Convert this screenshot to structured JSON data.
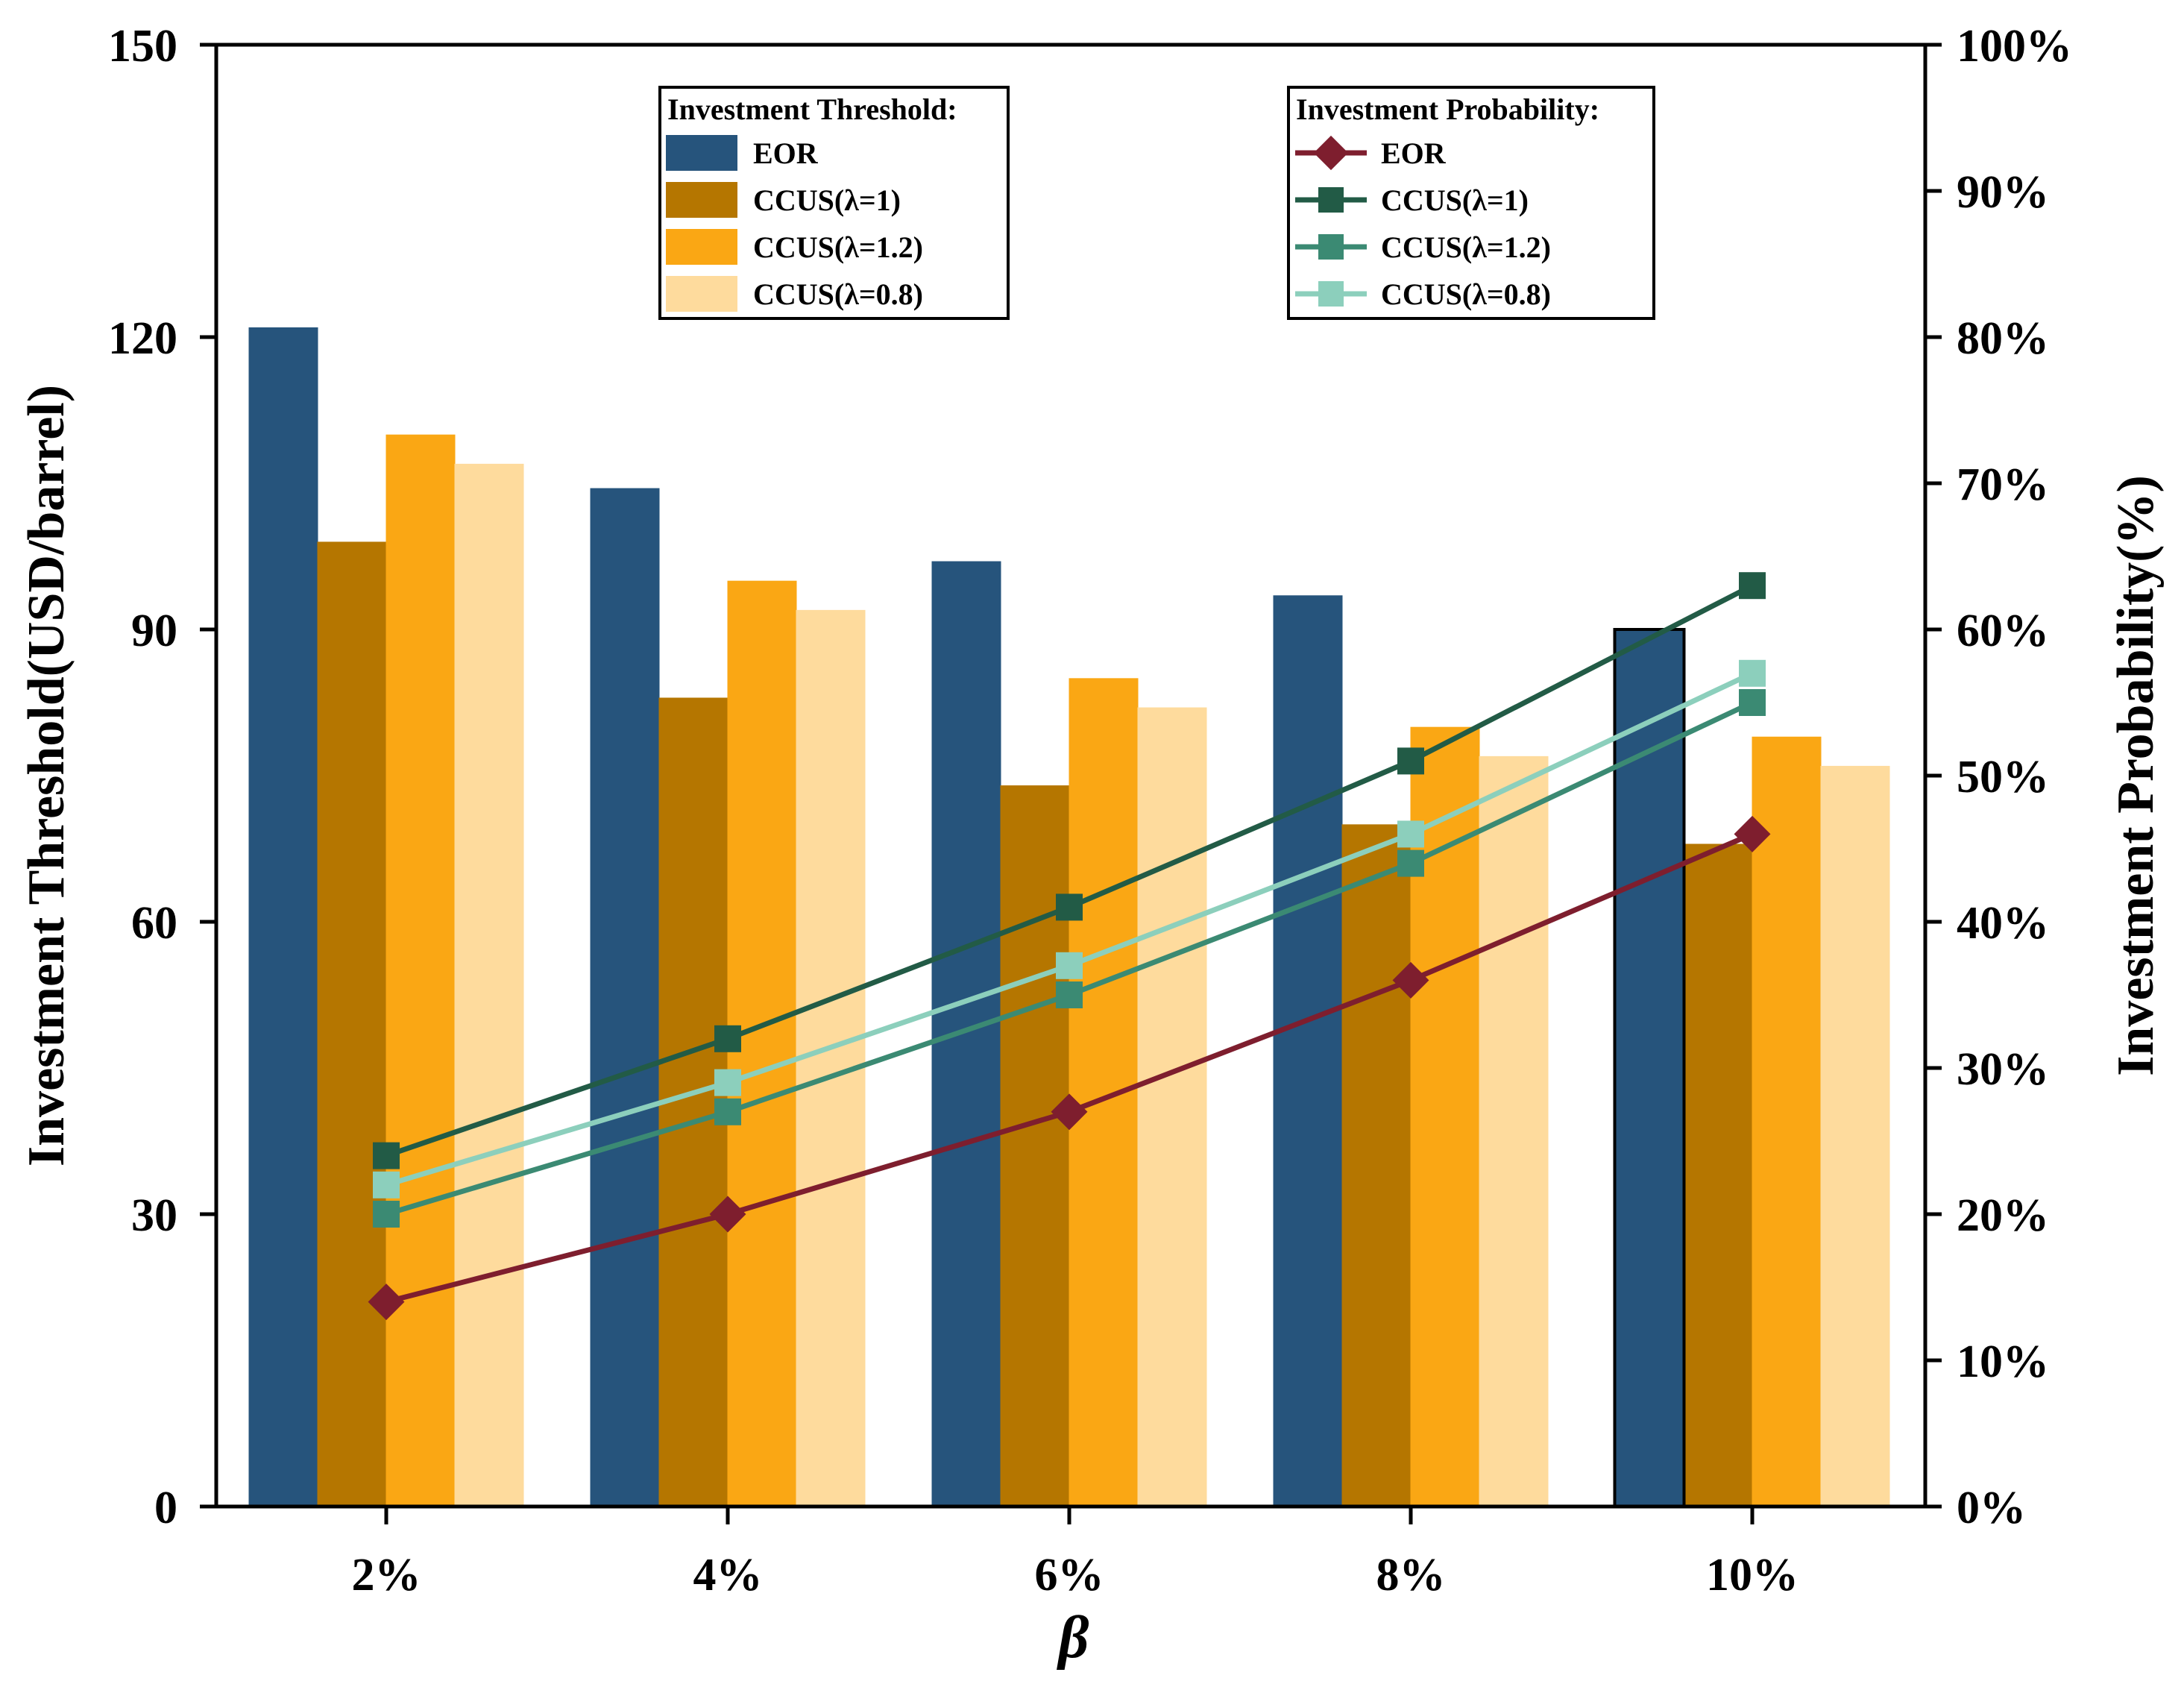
{
  "chart_data": {
    "type": "bar",
    "title": "",
    "categories": [
      "2%",
      "4%",
      "6%",
      "8%",
      "10%"
    ],
    "xlabel": "β",
    "ylabel_left": "Investment Threshold(USD/barrel)",
    "ylabel_right": "Investment Probability(%)",
    "ylim_left": [
      0,
      150
    ],
    "ylim_right": [
      0,
      100
    ],
    "left_ticks": [
      "0",
      "30",
      "60",
      "90",
      "120",
      "150"
    ],
    "left_tick_values": [
      0,
      30,
      60,
      90,
      120,
      150
    ],
    "right_ticks": [
      "0%",
      "10%",
      "20%",
      "30%",
      "40%",
      "50%",
      "60%",
      "70%",
      "80%",
      "90%",
      "100%"
    ],
    "right_tick_values": [
      0,
      10,
      20,
      30,
      40,
      50,
      60,
      70,
      80,
      90,
      100
    ],
    "bar_series": [
      {
        "name": "EOR",
        "color": "#26547C",
        "values": [
          121,
          104.5,
          97,
          93.5,
          90
        ]
      },
      {
        "name": "CCUS(λ=1)",
        "color": "#B57600",
        "values": [
          99,
          83,
          74,
          70,
          68
        ]
      },
      {
        "name": "CCUS(λ=1.2)",
        "color": "#FAA714",
        "values": [
          110,
          95,
          85,
          80,
          79
        ]
      },
      {
        "name": "CCUS(λ=0.8)",
        "color": "#FEDB9D",
        "values": [
          107,
          92,
          82,
          77,
          76
        ]
      }
    ],
    "line_series": [
      {
        "name": "EOR",
        "color": "#7E1E2E",
        "marker": "diamond",
        "values": [
          14,
          20,
          27,
          36,
          46
        ]
      },
      {
        "name": "CCUS(λ=1)",
        "color": "#225B46",
        "marker": "square",
        "values": [
          24,
          32,
          41,
          51,
          63
        ]
      },
      {
        "name": "CCUS(λ=1.2)",
        "color": "#3B8A73",
        "marker": "square",
        "values": [
          20,
          27,
          35,
          44,
          55
        ]
      },
      {
        "name": "CCUS(λ=0.8)",
        "color": "#8CCFBC",
        "marker": "square",
        "values": [
          22,
          29,
          37,
          46,
          57
        ]
      }
    ],
    "legend_bars_title": "Investment Threshold:",
    "legend_lines_title": "Investment Probability:"
  }
}
